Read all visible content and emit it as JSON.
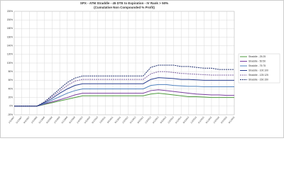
{
  "chart_data": {
    "type": "line",
    "title": "SPX - ATM Straddle - 45 DTE to Expiration - IV Rank > 50%",
    "subtitle": "(Cumulative Non Compounded % Profit)",
    "categories": [
      "1/3/2007",
      "5/1/2007",
      "9/4/2007",
      "1/2/2008",
      "5/1/2008",
      "9/2/2008",
      "1/2/2009",
      "5/1/2009",
      "9/1/2009",
      "1/4/2010",
      "5/3/2010",
      "9/1/2010",
      "1/3/2011",
      "5/2/2011",
      "9/1/2011",
      "1/3/2012",
      "5/1/2012",
      "9/4/2012",
      "1/2/2013",
      "5/1/2013",
      "9/3/2013",
      "1/2/2014",
      "5/1/2014",
      "9/2/2014",
      "1/2/2015",
      "5/1/2015",
      "9/1/2015",
      "1/4/2016",
      "5/2/2016",
      "9/1/2016"
    ],
    "series": [
      {
        "name": "Straddle - 25:25",
        "color": "#4e9a3e",
        "dashed": false,
        "values": [
          0,
          0,
          0,
          0,
          4,
          8,
          12,
          16,
          20,
          24,
          24,
          24,
          24,
          24,
          24,
          24,
          24,
          24,
          28,
          30,
          28,
          26,
          24,
          22,
          22,
          21,
          20,
          20,
          20,
          20
        ]
      },
      {
        "name": "Straddle - 50:50",
        "color": "#7a3f9e",
        "dashed": false,
        "values": [
          0,
          0,
          0,
          0,
          5,
          10,
          15,
          20,
          26,
          30,
          30,
          30,
          30,
          30,
          30,
          30,
          30,
          30,
          36,
          38,
          36,
          34,
          32,
          30,
          28,
          27,
          26,
          26,
          25,
          25
        ]
      },
      {
        "name": "Straddle - 75:75",
        "color": "#4f81bd",
        "dashed": false,
        "values": [
          0,
          0,
          0,
          0,
          6,
          14,
          22,
          30,
          36,
          40,
          40,
          40,
          40,
          40,
          40,
          40,
          40,
          40,
          48,
          50,
          50,
          48,
          47,
          46,
          46,
          45,
          45,
          45,
          45,
          45
        ]
      },
      {
        "name": "Straddle - 100:100",
        "color": "#2a3f8f",
        "dashed": false,
        "values": [
          0,
          0,
          0,
          0,
          8,
          18,
          30,
          40,
          48,
          52,
          52,
          52,
          52,
          52,
          52,
          52,
          52,
          52,
          62,
          66,
          65,
          64,
          62,
          62,
          61,
          60,
          60,
          60,
          60,
          60
        ]
      },
      {
        "name": "Straddle - 125:125",
        "color": "#8064a2",
        "dashed": true,
        "values": [
          0,
          0,
          0,
          0,
          10,
          22,
          35,
          48,
          58,
          62,
          62,
          62,
          62,
          62,
          62,
          62,
          62,
          62,
          75,
          80,
          80,
          78,
          76,
          75,
          74,
          73,
          72,
          72,
          72,
          72
        ]
      },
      {
        "name": "Straddle - 150:150",
        "color": "#1f2f6f",
        "dashed": true,
        "values": [
          0,
          0,
          0,
          0,
          10,
          25,
          40,
          55,
          65,
          70,
          70,
          70,
          70,
          70,
          70,
          70,
          70,
          70,
          90,
          95,
          95,
          95,
          92,
          92,
          90,
          88,
          88,
          85,
          85,
          85
        ]
      }
    ],
    "ylim": [
      -20,
      220
    ],
    "yticks": [
      {
        "value": -20,
        "label": "-20%"
      },
      {
        "value": 0,
        "label": "0%"
      },
      {
        "value": 20,
        "label": "20%"
      },
      {
        "value": 40,
        "label": "40%"
      },
      {
        "value": 60,
        "label": "60%"
      },
      {
        "value": 80,
        "label": "80%"
      },
      {
        "value": 100,
        "label": "100%"
      },
      {
        "value": 120,
        "label": "120%"
      },
      {
        "value": 140,
        "label": "140%"
      },
      {
        "value": 160,
        "label": "160%"
      },
      {
        "value": 180,
        "label": "180%"
      },
      {
        "value": 200,
        "label": "200%"
      },
      {
        "value": 220,
        "label": "220%"
      }
    ],
    "grid": true,
    "legend": "right"
  }
}
